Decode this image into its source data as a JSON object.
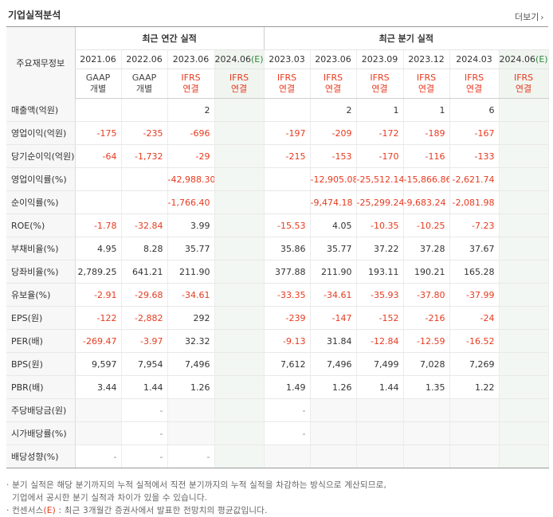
{
  "page": {
    "title": "기업실적분석",
    "more_label": "더보기",
    "more_icon": "chevron-right-icon"
  },
  "header": {
    "row_label": "주요재무정보",
    "annual_group": "최근 연간 실적",
    "quarter_group": "최근 분기 실적",
    "annual_periods": [
      {
        "period": "2021.06",
        "basis_top": "GAAP",
        "basis_bottom": "개별",
        "basis_color": "#444444",
        "estimate": false
      },
      {
        "period": "2022.06",
        "basis_top": "GAAP",
        "basis_bottom": "개별",
        "basis_color": "#444444",
        "estimate": false
      },
      {
        "period": "2023.06",
        "basis_top": "IFRS",
        "basis_bottom": "연결",
        "basis_color": "#e73a1f",
        "estimate": false
      },
      {
        "period": "2024.06",
        "est_suffix": "(E)",
        "basis_top": "IFRS",
        "basis_bottom": "연결",
        "basis_color": "#e73a1f",
        "estimate": true
      }
    ],
    "quarter_periods": [
      {
        "period": "2023.03",
        "basis_top": "IFRS",
        "basis_bottom": "연결",
        "estimate": false
      },
      {
        "period": "2023.06",
        "basis_top": "IFRS",
        "basis_bottom": "연결",
        "estimate": false
      },
      {
        "period": "2023.09",
        "basis_top": "IFRS",
        "basis_bottom": "연결",
        "estimate": false
      },
      {
        "period": "2023.12",
        "basis_top": "IFRS",
        "basis_bottom": "연결",
        "estimate": false
      },
      {
        "period": "2024.03",
        "basis_top": "IFRS",
        "basis_bottom": "연결",
        "estimate": false
      },
      {
        "period": "2024.06",
        "est_suffix": "(E)",
        "basis_top": "IFRS",
        "basis_bottom": "연결",
        "estimate": true
      }
    ]
  },
  "rows": [
    {
      "label": "매출액(억원)",
      "values": [
        "",
        "",
        "2",
        "",
        "",
        "2",
        "1",
        "1",
        "6",
        ""
      ]
    },
    {
      "label": "영업이익(억원)",
      "values": [
        "-175",
        "-235",
        "-696",
        "",
        "-197",
        "-209",
        "-172",
        "-189",
        "-167",
        ""
      ]
    },
    {
      "label": "당기순이익(억원)",
      "values": [
        "-64",
        "-1,732",
        "-29",
        "",
        "-215",
        "-153",
        "-170",
        "-116",
        "-133",
        ""
      ]
    },
    {
      "label": "영업이익률(%)",
      "values": [
        "",
        "",
        "-42,988.30",
        "",
        "",
        "-12,905.08",
        "-25,512.14",
        "-15,866.86",
        "-2,621.74",
        ""
      ]
    },
    {
      "label": "순이익률(%)",
      "values": [
        "",
        "",
        "-1,766.40",
        "",
        "",
        "-9,474.18",
        "-25,299.24",
        "-9,683.24",
        "-2,081.98",
        ""
      ]
    },
    {
      "label": "ROE(%)",
      "values": [
        "-1.78",
        "-32.84",
        "3.99",
        "",
        "-15.53",
        "4.05",
        "-10.35",
        "-10.25",
        "-7.23",
        ""
      ]
    },
    {
      "label": "부채비율(%)",
      "values": [
        "4.95",
        "8.28",
        "35.77",
        "",
        "35.86",
        "35.77",
        "37.22",
        "37.28",
        "37.67",
        ""
      ]
    },
    {
      "label": "당좌비율(%)",
      "values": [
        "2,789.25",
        "641.21",
        "211.90",
        "",
        "377.88",
        "211.90",
        "193.11",
        "190.21",
        "165.28",
        ""
      ]
    },
    {
      "label": "유보율(%)",
      "values": [
        "-2.91",
        "-29.68",
        "-34.61",
        "",
        "-33.35",
        "-34.61",
        "-35.93",
        "-37.80",
        "-37.99",
        ""
      ]
    },
    {
      "label": "EPS(원)",
      "values": [
        "-122",
        "-2,882",
        "292",
        "",
        "-239",
        "-147",
        "-152",
        "-216",
        "-24",
        ""
      ]
    },
    {
      "label": "PER(배)",
      "values": [
        "-269.47",
        "-3.97",
        "32.32",
        "",
        "-9.13",
        "31.84",
        "-12.84",
        "-12.59",
        "-16.52",
        ""
      ]
    },
    {
      "label": "BPS(원)",
      "values": [
        "9,597",
        "7,954",
        "7,496",
        "",
        "7,612",
        "7,496",
        "7,499",
        "7,028",
        "7,269",
        ""
      ]
    },
    {
      "label": "PBR(배)",
      "values": [
        "3.44",
        "1.44",
        "1.26",
        "",
        "1.49",
        "1.26",
        "1.44",
        "1.35",
        "1.22",
        ""
      ]
    },
    {
      "label": "주당배당금(원)",
      "values": [
        "",
        "-",
        "",
        "",
        "-",
        "",
        "",
        "",
        "",
        ""
      ],
      "blank": [
        0,
        2,
        5,
        6,
        7,
        8
      ]
    },
    {
      "label": "시가배당률(%)",
      "values": [
        "",
        "-",
        "",
        "",
        "-",
        "",
        "",
        "",
        "",
        ""
      ],
      "blank": [
        0,
        2,
        5,
        6,
        7,
        8
      ]
    },
    {
      "label": "배당성향(%)",
      "values": [
        "-",
        "-",
        "-",
        "",
        "",
        "",
        "",
        "",
        "",
        ""
      ],
      "blank": [
        4,
        5,
        6,
        7,
        8
      ]
    }
  ],
  "notes": {
    "line1": "· 분기 실적은 해당 분기까지의 누적 실적에서 직전 분기까지의 누적 실적을 차감하는 방식으로 계산되므로,",
    "line2": "기업에서 공시한 분기 실적과 차이가 있을 수 있습니다.",
    "line3_prefix": "· 컨센서스",
    "line3_e": "(E)",
    "line3_rest": " : 최근 3개월간 증권사에서 발표한 전망치의 평균값입니다."
  },
  "colors": {
    "negative": "#e73a1f",
    "ifrs": "#e73a1f",
    "estimate_bg": "#f3f7f3"
  }
}
